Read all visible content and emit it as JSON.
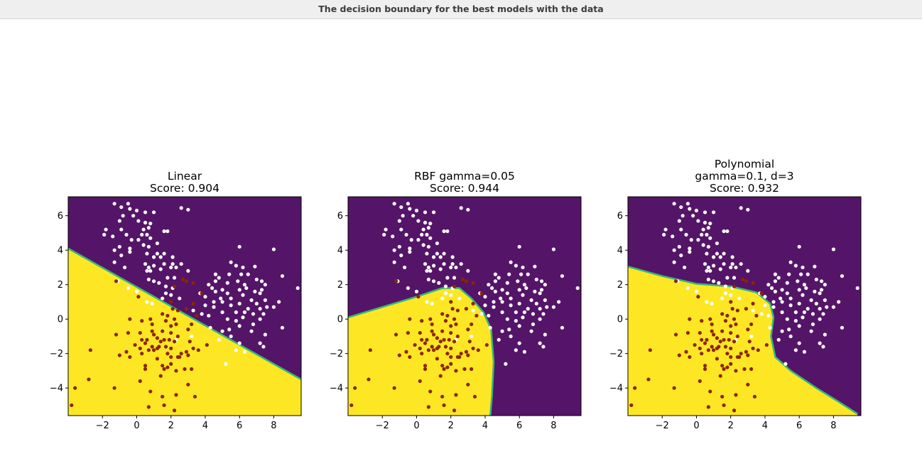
{
  "window": {
    "title": "The decision boundary for the best models with the data"
  },
  "colors": {
    "purple_region": "#541468",
    "yellow_region": "#fde725",
    "boundary": "#35b779",
    "class_a_points": "#ffffff",
    "class_b_points": "#8b2500"
  },
  "chart_data": [
    {
      "type": "scatter",
      "title_lines": [
        "Linear",
        "Score: 0.904"
      ],
      "xlim": [
        -4,
        9.6
      ],
      "ylim": [
        -5.6,
        7.1
      ],
      "xticks": [
        -2,
        0,
        2,
        4,
        6,
        8
      ],
      "yticks": [
        -4,
        -2,
        0,
        2,
        4,
        6
      ],
      "boundary": [
        [
          -4,
          4.1
        ],
        [
          9.6,
          -3.5
        ]
      ]
    },
    {
      "type": "scatter",
      "title_lines": [
        "RBF gamma=0.05",
        "Score: 0.944"
      ],
      "xlim": [
        -4,
        9.6
      ],
      "ylim": [
        -5.6,
        7.1
      ],
      "xticks": [
        -2,
        0,
        2,
        4,
        6,
        8
      ],
      "yticks": [
        -4,
        -2,
        0,
        2,
        4,
        6
      ],
      "boundary": [
        [
          -4,
          0.1
        ],
        [
          -2,
          0.7
        ],
        [
          0,
          1.3
        ],
        [
          1.5,
          1.8
        ],
        [
          2.5,
          1.8
        ],
        [
          3.2,
          1.2
        ],
        [
          3.9,
          0.4
        ],
        [
          4.35,
          -0.6
        ],
        [
          4.5,
          -2.5
        ],
        [
          4.4,
          -4.5
        ],
        [
          4.3,
          -5.6
        ]
      ]
    },
    {
      "type": "scatter",
      "title_lines": [
        "Polynomial",
        "gamma=0.1, d=3",
        "Score: 0.932"
      ],
      "xlim": [
        -4,
        9.6
      ],
      "ylim": [
        -5.6,
        7.1
      ],
      "xticks": [
        -2,
        0,
        2,
        4,
        6,
        8
      ],
      "yticks": [
        -4,
        -2,
        0,
        2,
        4,
        6
      ],
      "boundary": [
        [
          -4,
          3.05
        ],
        [
          -2,
          2.5
        ],
        [
          0,
          2.05
        ],
        [
          2,
          1.9
        ],
        [
          3.5,
          1.55
        ],
        [
          4.3,
          0.9
        ],
        [
          4.5,
          0.1
        ],
        [
          4.35,
          -1.0
        ],
        [
          4.6,
          -2.2
        ],
        [
          5.5,
          -3.0
        ],
        [
          7,
          -4.0
        ],
        [
          8.3,
          -4.8
        ],
        [
          9.4,
          -5.5
        ]
      ]
    }
  ],
  "points": {
    "class_a": [
      [
        -1.3,
        6.7
      ],
      [
        -0.9,
        6.5
      ],
      [
        -0.5,
        6.7
      ],
      [
        -0.4,
        6.4
      ],
      [
        0,
        6.3
      ],
      [
        0.5,
        6.2
      ],
      [
        1,
        6.2
      ],
      [
        2.6,
        6.45
      ],
      [
        3,
        6.35
      ],
      [
        -0.8,
        6.0
      ],
      [
        -0.2,
        6.0
      ],
      [
        -1.0,
        5.7
      ],
      [
        0.1,
        5.7
      ],
      [
        0.5,
        5.6
      ],
      [
        0.8,
        5.55
      ],
      [
        -1.8,
        5.2
      ],
      [
        -1.9,
        4.9
      ],
      [
        -0.9,
        5.2
      ],
      [
        0.4,
        5.2
      ],
      [
        0.7,
        5.3
      ],
      [
        1.6,
        5.1
      ],
      [
        1.8,
        5.1
      ],
      [
        -1.4,
        4.8
      ],
      [
        -0.6,
        4.9
      ],
      [
        0.3,
        4.9
      ],
      [
        0.6,
        4.9
      ],
      [
        0.8,
        4.7
      ],
      [
        -0.3,
        4.6
      ],
      [
        0.1,
        4.6
      ],
      [
        -1.0,
        4.2
      ],
      [
        -0.4,
        4.1
      ],
      [
        0.4,
        4.3
      ],
      [
        0.7,
        4.2
      ],
      [
        1.2,
        4.4
      ],
      [
        -1.3,
        3.3
      ],
      [
        -0.9,
        3.7
      ],
      [
        -0.4,
        3.9
      ],
      [
        -1.3,
        4.0
      ],
      [
        0.6,
        3.8
      ],
      [
        1.2,
        3.8
      ],
      [
        1.6,
        3.8
      ],
      [
        1.0,
        3.6
      ],
      [
        1.4,
        3.6
      ],
      [
        2.1,
        3.6
      ],
      [
        -0.7,
        3.0
      ],
      [
        0.5,
        3.2
      ],
      [
        0.7,
        3.0
      ],
      [
        1.0,
        3.1
      ],
      [
        1.6,
        3.2
      ],
      [
        2.1,
        3.2
      ],
      [
        2.6,
        3.2
      ],
      [
        2.3,
        3.0
      ],
      [
        0.6,
        2.8
      ],
      [
        0.8,
        2.8
      ],
      [
        1.4,
        2.9
      ],
      [
        2.0,
        3.0
      ],
      [
        3.0,
        2.8
      ],
      [
        0.7,
        2.3
      ],
      [
        1.0,
        2.2
      ],
      [
        1.3,
        2.1
      ],
      [
        1.8,
        2.4
      ],
      [
        2.2,
        2.4
      ],
      [
        -1.1,
        2.2
      ],
      [
        1.7,
        1.9
      ],
      [
        2.1,
        1.8
      ],
      [
        1.7,
        1.5
      ],
      [
        2.0,
        1.4
      ],
      [
        0.6,
        1.0
      ],
      [
        1.5,
        1.2
      ],
      [
        2.5,
        1.2
      ],
      [
        -0.5,
        1.8
      ],
      [
        6.0,
        4.2
      ],
      [
        8.0,
        4.05
      ],
      [
        4.6,
        2.6
      ],
      [
        4.8,
        2.4
      ],
      [
        5.5,
        3.3
      ],
      [
        6.2,
        3.0
      ],
      [
        6.9,
        3.05
      ],
      [
        5.8,
        3.1
      ],
      [
        5.4,
        2.6
      ],
      [
        6.1,
        2.6
      ],
      [
        6.5,
        2.6
      ],
      [
        7.3,
        2.2
      ],
      [
        7.5,
        2.0
      ],
      [
        8.5,
        2.5
      ],
      [
        9.4,
        1.8
      ],
      [
        4.2,
        2.0
      ],
      [
        4.6,
        2.2
      ],
      [
        5.3,
        2.1
      ],
      [
        5.9,
        2.2
      ],
      [
        6.3,
        2.0
      ],
      [
        7.0,
        2.3
      ],
      [
        7.3,
        1.7
      ],
      [
        4.4,
        1.8
      ],
      [
        4.6,
        1.6
      ],
      [
        5.0,
        1.7
      ],
      [
        5.3,
        1.5
      ],
      [
        6.0,
        1.7
      ],
      [
        6.4,
        1.8
      ],
      [
        6.9,
        1.6
      ],
      [
        7.2,
        1.5
      ],
      [
        3.7,
        1.5
      ],
      [
        4.0,
        1.3
      ],
      [
        4.5,
        1.0
      ],
      [
        4.9,
        1.2
      ],
      [
        5.5,
        1.2
      ],
      [
        6.2,
        1.4
      ],
      [
        6.7,
        1.1
      ],
      [
        7.5,
        1.1
      ],
      [
        7.0,
        0.9
      ],
      [
        5.0,
        1.0
      ],
      [
        5.5,
        0.8
      ],
      [
        6.0,
        0.9
      ],
      [
        6.5,
        0.6
      ],
      [
        7.2,
        0.6
      ],
      [
        7.6,
        0.7
      ],
      [
        8.0,
        0.7
      ],
      [
        4.0,
        0.8
      ],
      [
        4.5,
        0.7
      ],
      [
        5.0,
        0.4
      ],
      [
        5.8,
        0.4
      ],
      [
        6.3,
        0.4
      ],
      [
        6.8,
        0.3
      ],
      [
        7.4,
        0.3
      ],
      [
        8.3,
        1.0
      ],
      [
        3.8,
        0.3
      ],
      [
        4.2,
        0.2
      ],
      [
        5.3,
        0.0
      ],
      [
        5.8,
        -0.1
      ],
      [
        6.2,
        0.1
      ],
      [
        6.8,
        -0.3
      ],
      [
        7.2,
        0.0
      ],
      [
        3.3,
        0.5
      ],
      [
        4.3,
        -0.5
      ],
      [
        5.0,
        -0.7
      ],
      [
        5.4,
        -0.6
      ],
      [
        6.0,
        -0.4
      ],
      [
        6.7,
        -0.7
      ],
      [
        7.5,
        -0.9
      ],
      [
        8.5,
        -0.5
      ],
      [
        4.8,
        -1.2
      ],
      [
        5.5,
        -1.0
      ],
      [
        6.0,
        -1.4
      ],
      [
        7.2,
        -1.4
      ],
      [
        5.8,
        -1.8
      ],
      [
        5.2,
        -2.6
      ],
      [
        6.3,
        -1.9
      ],
      [
        7.4,
        -1.6
      ],
      [
        3.2,
        -1.0
      ],
      [
        2.3,
        -1.2
      ],
      [
        0.0,
        1.6
      ],
      [
        0.9,
        0.9
      ]
    ],
    "class_b": [
      [
        2.7,
        2.3
      ],
      [
        2.9,
        2.2
      ],
      [
        3.3,
        2.1
      ],
      [
        3.8,
        1.5
      ],
      [
        2.2,
        1.9
      ],
      [
        2.0,
        1.0
      ],
      [
        0.1,
        1.3
      ],
      [
        -1.2,
        2.2
      ],
      [
        2.1,
        0.6
      ],
      [
        1.8,
        0.2
      ],
      [
        2.4,
        0.5
      ],
      [
        2.9,
        0.6
      ],
      [
        3.3,
        0.9
      ],
      [
        1.5,
        0.3
      ],
      [
        0.8,
        0.0
      ],
      [
        0.3,
        -0.1
      ],
      [
        -0.4,
        0.0
      ],
      [
        2.2,
        0.0
      ],
      [
        1.7,
        -0.1
      ],
      [
        3.2,
        -0.3
      ],
      [
        2.0,
        -0.4
      ],
      [
        0.9,
        -0.3
      ],
      [
        0.2,
        -0.8
      ],
      [
        -0.5,
        -0.8
      ],
      [
        -1.2,
        -0.9
      ],
      [
        0.9,
        -0.7
      ],
      [
        1.5,
        -0.7
      ],
      [
        2.0,
        -0.8
      ],
      [
        2.4,
        -1.0
      ],
      [
        1.0,
        -0.9
      ],
      [
        0.3,
        -1.2
      ],
      [
        0.6,
        -1.2
      ],
      [
        1.2,
        -1.1
      ],
      [
        1.6,
        -1.2
      ],
      [
        1.9,
        -1.2
      ],
      [
        2.2,
        -1.3
      ],
      [
        1.4,
        -1.3
      ],
      [
        3.1,
        -1.3
      ],
      [
        0.9,
        -1.6
      ],
      [
        1.3,
        -1.6
      ],
      [
        1.7,
        -1.6
      ],
      [
        2.0,
        -1.7
      ],
      [
        0.5,
        -1.4
      ],
      [
        3.3,
        -1.7
      ],
      [
        -0.6,
        -1.9
      ],
      [
        0.2,
        -1.7
      ],
      [
        0.7,
        -1.8
      ],
      [
        1.0,
        -1.8
      ],
      [
        1.8,
        -2.0
      ],
      [
        2.6,
        -2.0
      ],
      [
        2.9,
        -1.9
      ],
      [
        -1.0,
        -2.1
      ],
      [
        -0.4,
        -2.2
      ],
      [
        0.3,
        -2.0
      ],
      [
        1.2,
        -2.3
      ],
      [
        2.5,
        -2.2
      ],
      [
        3.6,
        -1.8
      ],
      [
        -2.7,
        -1.8
      ],
      [
        0.5,
        -2.7
      ],
      [
        1.5,
        -2.7
      ],
      [
        2.0,
        -2.6
      ],
      [
        2.4,
        -2.2
      ],
      [
        3.0,
        -2.1
      ],
      [
        0.5,
        -2.9
      ],
      [
        1.6,
        -2.9
      ],
      [
        1.8,
        -2.8
      ],
      [
        2.3,
        -3.0
      ],
      [
        2.8,
        -2.9
      ],
      [
        3.2,
        -2.9
      ],
      [
        0.2,
        -3.6
      ],
      [
        1.4,
        -3.3
      ],
      [
        3.0,
        -3.8
      ],
      [
        -3.6,
        -4.0
      ],
      [
        -1.3,
        -4.0
      ],
      [
        0.8,
        -4.2
      ],
      [
        1.5,
        -4.5
      ],
      [
        2.3,
        -4.4
      ],
      [
        3.4,
        -4.5
      ],
      [
        -3.8,
        -5.0
      ],
      [
        0.7,
        -5.1
      ],
      [
        1.6,
        -5.0
      ],
      [
        2.2,
        -5.3
      ],
      [
        -2.8,
        -3.5
      ],
      [
        4.1,
        -1.5
      ],
      [
        3.0,
        -0.6
      ],
      [
        2.3,
        -0.3
      ],
      [
        3.5,
        0.2
      ],
      [
        1.2,
        -1.7
      ],
      [
        2.0,
        -2.2
      ],
      [
        -0.1,
        -1.5
      ]
    ]
  }
}
